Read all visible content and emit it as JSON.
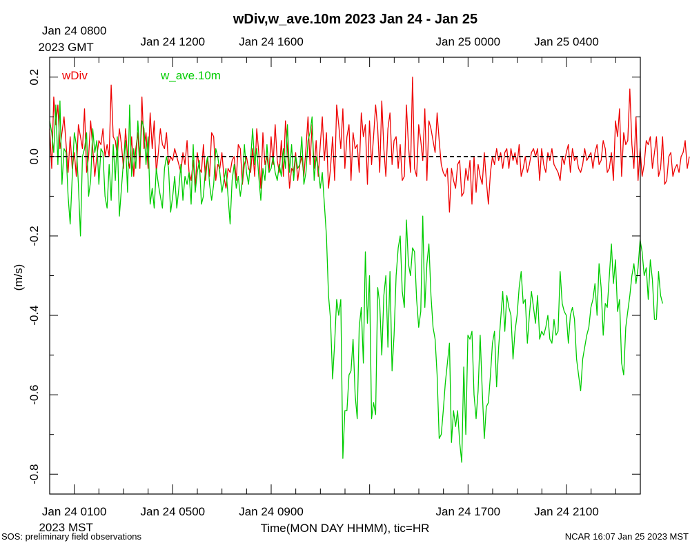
{
  "chart_data": {
    "type": "line",
    "title": "wDiv,w_ave.10m 2023 Jan 24 - Jan 25",
    "xlabel": "Time(MON DAY HHMM), tic=HR",
    "ylabel": "(m/s)",
    "x_unit": "hours since Jan 24 0000 MST",
    "xlim": [
      0.0,
      24.0
    ],
    "ylim": [
      -0.85,
      0.25
    ],
    "y_ticks": [
      0.2,
      0.0,
      -0.2,
      -0.4,
      -0.6,
      -0.8
    ],
    "y_tick_labels": [
      "0.2",
      "0.0",
      "-0.2",
      "-0.4",
      "-0.6",
      "-0.8"
    ],
    "bottom_ticks": [
      {
        "x": 1,
        "label": "Jan 24 0100"
      },
      {
        "x": 5,
        "label": "Jan 24 0500"
      },
      {
        "x": 9,
        "label": "Jan 24 0900"
      },
      {
        "x": 17,
        "label": "Jan 24 1700"
      },
      {
        "x": 21,
        "label": "Jan 24 2100"
      }
    ],
    "bottom_extra": {
      "x": 1,
      "label": "2023 MST"
    },
    "top_ticks": [
      {
        "x": 1,
        "label": "Jan 24 0800"
      },
      {
        "x": 5,
        "label": "Jan 24 1200"
      },
      {
        "x": 9,
        "label": "Jan 24 1600"
      },
      {
        "x": 17,
        "label": "Jan 25 0000"
      },
      {
        "x": 21,
        "label": "Jan 25 0400"
      }
    ],
    "top_extra": {
      "x": 1,
      "label": "2023 GMT"
    },
    "zero_line": {
      "y": 0.0,
      "style": "dashed",
      "color": "#000000"
    },
    "series": [
      {
        "name": "wDiv",
        "color": "#ee0000",
        "x_start": 0.0,
        "x_step": 0.0833,
        "values": [
          0.07,
          -0.03,
          0.15,
          0.08,
          0.13,
          0.02,
          0.06,
          0.1,
          0.03,
          -0.04,
          0.05,
          -0.03,
          0.01,
          -0.05,
          0.08,
          0.05,
          0.02,
          0.12,
          -0.04,
          0.0,
          0.09,
          0.02,
          -0.05,
          0.0,
          0.04,
          0.03,
          0.07,
          0.0,
          0.03,
          0.0,
          0.18,
          0.05,
          0.04,
          0.0,
          0.07,
          0.03,
          -0.03,
          0.07,
          0.0,
          -0.03,
          0.05,
          -0.05,
          0.02,
          0.06,
          -0.03,
          0.15,
          0.02,
          0.06,
          -0.03,
          0.11,
          0.02,
          0.09,
          -0.04,
          0.01,
          0.07,
          0.03,
          0.02,
          0.06,
          -0.02,
          0.0,
          -0.01,
          0.02,
          0.0,
          -0.02,
          -0.04,
          0.01,
          -0.02,
          0.04,
          -0.04,
          -0.06,
          -0.01,
          -0.08,
          0.01,
          -0.03,
          -0.04,
          0.03,
          -0.06,
          0.0,
          -0.05,
          0.06,
          0.05,
          -0.06,
          -0.02,
          -0.03,
          0.01,
          -0.05,
          -0.08,
          -0.03,
          -0.04,
          -0.01,
          0.0,
          -0.06,
          0.03,
          0.02,
          -0.07,
          -0.02,
          0.0,
          -0.03,
          -0.04,
          0.02,
          -0.05,
          0.07,
          0.01,
          -0.08,
          0.06,
          -0.02,
          0.0,
          -0.04,
          0.05,
          -0.02,
          0.08,
          -0.01,
          -0.04,
          0.04,
          -0.05,
          0.09,
          0.02,
          -0.08,
          -0.03,
          -0.04,
          0.01,
          -0.06,
          -0.02,
          0.0,
          -0.05,
          0.02,
          0.1,
          -0.02,
          0.08,
          -0.03,
          0.04,
          -0.05,
          0.03,
          0.1,
          -0.01,
          0.06,
          -0.08,
          -0.03,
          0.05,
          -0.06,
          0.13,
          0.08,
          0.02,
          0.12,
          -0.03,
          0.05,
          0.08,
          -0.06,
          0.06,
          0.02,
          0.03,
          -0.04,
          0.11,
          0.05,
          0.08,
          -0.07,
          0.09,
          -0.02,
          0.05,
          0.13,
          0.07,
          -0.04,
          0.14,
          0.02,
          -0.05,
          0.07,
          0.11,
          -0.02,
          0.04,
          0.05,
          -0.03,
          0.03,
          -0.06,
          -0.05,
          0.13,
          0.03,
          -0.04,
          0.2,
          -0.03,
          -0.05,
          0.08,
          0.04,
          -0.01,
          0.12,
          -0.06,
          0.09,
          0.07,
          0.04,
          0.01,
          0.11,
          0.04,
          -0.02,
          -0.04,
          -0.05,
          -0.03,
          -0.14,
          -0.03,
          -0.06,
          -0.08,
          -0.02,
          -0.01,
          -0.1,
          -0.09,
          -0.03,
          -0.06,
          -0.01,
          -0.12,
          0.0,
          -0.09,
          -0.02,
          -0.05,
          -0.07,
          0.01,
          -0.06,
          -0.12,
          -0.04,
          0.0,
          -0.02,
          0.02,
          -0.01,
          0.01,
          -0.03,
          0.01,
          0.02,
          -0.03,
          0.02,
          -0.01,
          0.01,
          -0.02,
          0.03,
          -0.05,
          -0.03,
          0.0,
          -0.04,
          -0.02,
          0.01,
          0.02,
          0.0,
          0.02,
          -0.06,
          0.02,
          -0.02,
          -0.04,
          0.01,
          -0.01,
          0.02,
          -0.02,
          -0.03,
          -0.04,
          -0.06,
          0.0,
          -0.02,
          0.01,
          0.03,
          -0.04,
          0.02,
          -0.01,
          0.0,
          -0.03,
          -0.04,
          -0.02,
          0.02,
          -0.01,
          0.0,
          0.01,
          -0.03,
          0.01,
          0.03,
          -0.02,
          -0.01,
          0.04,
          0.02,
          -0.04,
          -0.03,
          0.01,
          -0.06,
          0.09,
          0.05,
          0.12,
          -0.05,
          0.06,
          0.03,
          0.04,
          0.17,
          0.03,
          -0.03,
          0.1,
          -0.06,
          0.02,
          -0.05,
          -0.02,
          0.04,
          0.03,
          0.05,
          -0.03,
          0.01,
          0.05,
          -0.05,
          -0.03,
          0.05,
          -0.07,
          -0.06,
          0.0,
          0.01,
          -0.05,
          -0.03,
          -0.02,
          -0.04,
          0.0,
          0.01,
          0.04,
          -0.03,
          0.0
        ]
      },
      {
        "name": "w_ave.10m",
        "color": "#00cc00",
        "x_start": 0.0,
        "x_step": 0.0833,
        "values": [
          0.09,
          0.06,
          0.01,
          0.13,
          -0.02,
          0.14,
          -0.07,
          0.02,
          0.01,
          -0.1,
          -0.17,
          -0.05,
          0.06,
          0.03,
          -0.07,
          -0.2,
          0.0,
          0.02,
          0.06,
          -0.1,
          -0.06,
          0.07,
          0.01,
          0.04,
          -0.07,
          0.02,
          0.01,
          -0.1,
          -0.13,
          -0.02,
          -0.11,
          0.03,
          -0.06,
          0.05,
          -0.15,
          -0.08,
          -0.01,
          0.04,
          -0.09,
          0.13,
          -0.05,
          0.02,
          -0.03,
          0.09,
          0.0,
          0.09,
          0.07,
          -0.02,
          0.05,
          -0.12,
          -0.08,
          -0.13,
          -0.03,
          -0.07,
          -0.1,
          -0.13,
          -0.03,
          0.0,
          -0.03,
          -0.14,
          -0.1,
          -0.05,
          -0.13,
          -0.08,
          -0.02,
          -0.11,
          -0.05,
          -0.07,
          -0.04,
          -0.12,
          0.03,
          -0.09,
          -0.04,
          -0.01,
          -0.12,
          -0.1,
          -0.03,
          0.0,
          -0.07,
          -0.11,
          -0.07,
          0.02,
          0.0,
          -0.04,
          -0.09,
          -0.06,
          -0.03,
          -0.1,
          -0.17,
          -0.06,
          -0.02,
          -0.08,
          -0.05,
          -0.1,
          -0.06,
          0.03,
          -0.04,
          -0.07,
          -0.01,
          0.07,
          -0.02,
          0.02,
          -0.05,
          -0.11,
          -0.03,
          -0.06,
          0.03,
          -0.04,
          -0.03,
          0.0,
          -0.04,
          -0.06,
          -0.02,
          -0.05,
          0.02,
          -0.03,
          0.08,
          -0.04,
          0.03,
          -0.06,
          0.0,
          -0.03,
          -0.02,
          0.05,
          -0.07,
          -0.04,
          0.04,
          0.06,
          0.1,
          -0.06,
          0.0,
          -0.03,
          -0.08,
          -0.04,
          -0.12,
          -0.2,
          -0.35,
          -0.41,
          -0.56,
          -0.47,
          -0.36,
          -0.4,
          -0.36,
          -0.76,
          -0.64,
          -0.64,
          -0.55,
          -0.54,
          -0.46,
          -0.6,
          -0.66,
          -0.43,
          -0.38,
          -0.52,
          -0.24,
          -0.42,
          -0.3,
          -0.66,
          -0.62,
          -0.65,
          -0.33,
          -0.37,
          -0.5,
          -0.35,
          -0.3,
          -0.48,
          -0.29,
          -0.54,
          -0.45,
          -0.3,
          -0.23,
          -0.2,
          -0.34,
          -0.38,
          -0.16,
          -0.27,
          -0.3,
          -0.23,
          -0.24,
          -0.36,
          -0.43,
          -0.39,
          -0.15,
          -0.38,
          -0.27,
          -0.22,
          -0.35,
          -0.43,
          -0.46,
          -0.55,
          -0.71,
          -0.7,
          -0.64,
          -0.57,
          -0.52,
          -0.47,
          -0.72,
          -0.64,
          -0.68,
          -0.64,
          -0.72,
          -0.77,
          -0.53,
          -0.7,
          -0.45,
          -0.46,
          -0.44,
          -0.6,
          -0.66,
          -0.59,
          -0.45,
          -0.59,
          -0.71,
          -0.63,
          -0.62,
          -0.55,
          -0.47,
          -0.44,
          -0.58,
          -0.48,
          -0.41,
          -0.34,
          -0.44,
          -0.35,
          -0.38,
          -0.4,
          -0.51,
          -0.44,
          -0.4,
          -0.33,
          -0.29,
          -0.37,
          -0.36,
          -0.47,
          -0.4,
          -0.34,
          -0.38,
          -0.42,
          -0.35,
          -0.46,
          -0.44,
          -0.45,
          -0.43,
          -0.4,
          -0.46,
          -0.47,
          -0.41,
          -0.45,
          -0.44,
          -0.29,
          -0.37,
          -0.39,
          -0.4,
          -0.47,
          -0.4,
          -0.38,
          -0.41,
          -0.51,
          -0.55,
          -0.59,
          -0.51,
          -0.48,
          -0.45,
          -0.43,
          -0.38,
          -0.36,
          -0.32,
          -0.4,
          -0.27,
          -0.33,
          -0.45,
          -0.37,
          -0.38,
          -0.3,
          -0.22,
          -0.32,
          -0.26,
          -0.39,
          -0.36,
          -0.52,
          -0.55,
          -0.43,
          -0.39,
          -0.35,
          -0.3,
          -0.27,
          -0.32,
          -0.28,
          -0.21,
          -0.24,
          -0.3,
          -0.28,
          -0.36,
          -0.26,
          -0.31,
          -0.41,
          -0.41,
          -0.29,
          -0.35,
          -0.37
        ]
      }
    ],
    "legend": [
      {
        "label": "wDiv",
        "color": "#ee0000"
      },
      {
        "label": "w_ave.10m",
        "color": "#00cc00"
      }
    ]
  },
  "footer": {
    "left": "SOS: preliminary field observations",
    "right": "NCAR 16:07 Jan 25 2023 MST"
  }
}
